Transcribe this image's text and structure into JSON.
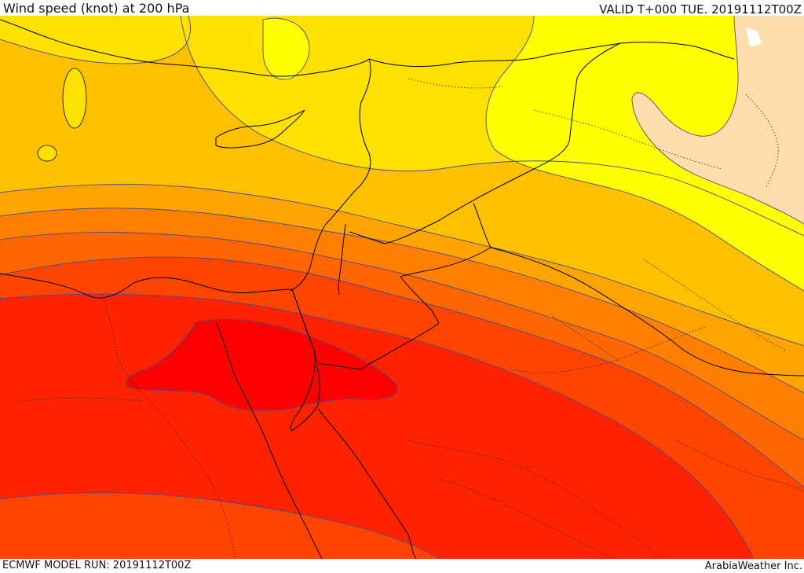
{
  "header": {
    "title": "Wind speed (knot) at 200 hPa",
    "valid_time": "VALID T+000 TUE. 20191112T00Z"
  },
  "footer": {
    "model_run": "ECMWF MODEL RUN: 20191112T00Z",
    "credit": "ArabiaWeather Inc."
  },
  "colors": {
    "band_1": "#ffffff",
    "band_2": "#fedead",
    "band_3": "#ffff00",
    "band_4": "#ffe100",
    "band_5": "#ffc000",
    "band_6": "#ffa400",
    "band_7": "#ff8000",
    "band_8": "#ff6600",
    "band_9": "#ff4400",
    "band_10": "#ff2200",
    "band_11": "#ff0000",
    "coastline": "#000000",
    "border_dotted": "#222222",
    "contour": "#4a4a8a"
  }
}
